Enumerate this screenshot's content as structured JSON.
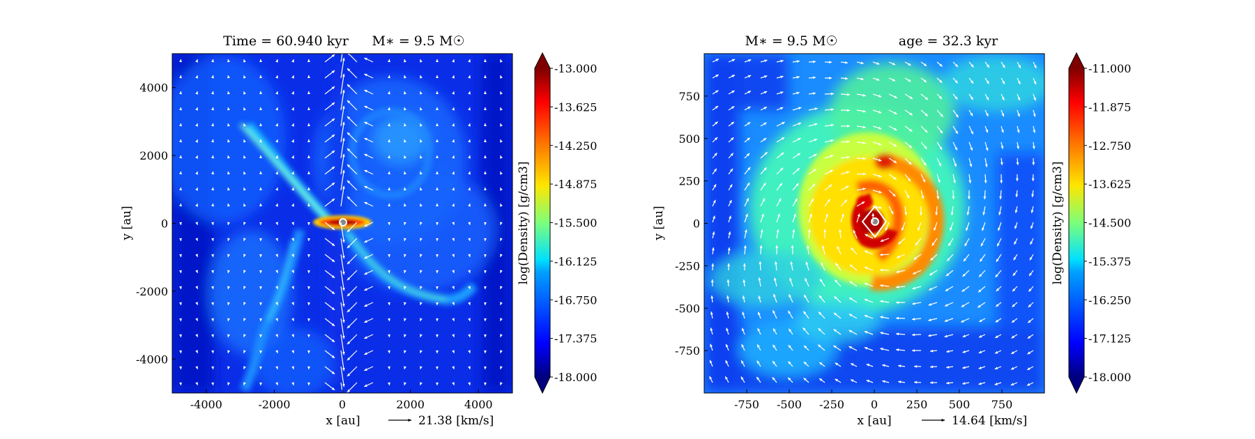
{
  "figure": {
    "chart_data": [
      {
        "type": "heatmap",
        "title_left": "Time = 60.940 kyr",
        "title_right": "M∗ = 9.5 M☉",
        "xlabel": "x [au]",
        "ylabel": "y [au]",
        "xlim": [
          -5000,
          5000
        ],
        "ylim": [
          -5000,
          5000
        ],
        "xticks": [
          "-4000",
          "-2000",
          "0",
          "2000",
          "4000"
        ],
        "yticks": [
          "4000",
          "2000",
          "0",
          "-2000",
          "-4000"
        ],
        "xtick_values": [
          -4000,
          -2000,
          0,
          2000,
          4000
        ],
        "ytick_values": [
          4000,
          2000,
          0,
          -2000,
          -4000
        ],
        "velocity_key": "21.38 [km/s]",
        "colorbar": {
          "label": "log(Density) [g/cm3]",
          "ticks": [
            "-13.000",
            "-13.625",
            "-14.250",
            "-14.875",
            "-15.500",
            "-16.125",
            "-16.750",
            "-17.375",
            "-18.000"
          ],
          "range": [
            -18.0,
            -13.0
          ],
          "colormap": "jet"
        },
        "features": "bipolar outflow along y axis, filaments, compact disk at origin"
      },
      {
        "type": "heatmap",
        "title_left": "M∗ = 9.5 M☉",
        "title_right": "age = 32.3 kyr",
        "xlabel": "x [au]",
        "ylabel": "y [au]",
        "xlim": [
          -1000,
          1000
        ],
        "ylim": [
          -1000,
          1000
        ],
        "xticks": [
          "-750",
          "-500",
          "-250",
          "0",
          "250",
          "500",
          "750"
        ],
        "yticks": [
          "750",
          "500",
          "250",
          "0",
          "-250",
          "-500",
          "-750"
        ],
        "xtick_values": [
          -750,
          -500,
          -250,
          0,
          250,
          500,
          750
        ],
        "ytick_values": [
          750,
          500,
          250,
          0,
          -250,
          -500,
          -750
        ],
        "velocity_key": "14.64 [km/s]",
        "colorbar": {
          "label": "log(Density) [g/cm3]",
          "ticks": [
            "-11.000",
            "-11.875",
            "-12.750",
            "-13.625",
            "-14.500",
            "-15.375",
            "-16.250",
            "-17.125",
            "-18.000"
          ],
          "range": [
            -18.0,
            -11.0
          ],
          "colormap": "jet"
        },
        "features": "spiral disk with dense core at origin"
      }
    ]
  }
}
